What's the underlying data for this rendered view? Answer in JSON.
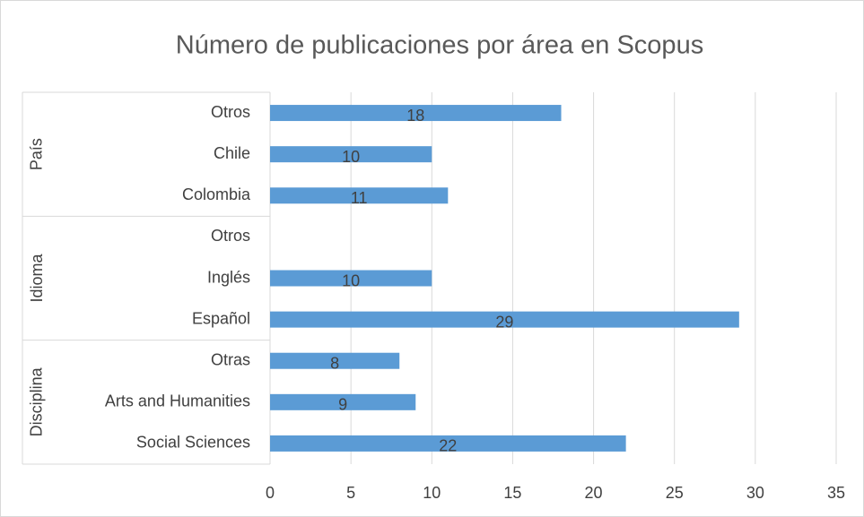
{
  "chart_data": {
    "type": "bar",
    "orientation": "horizontal",
    "title": "Número de publicaciones por área en Scopus",
    "groups": [
      {
        "name": "País",
        "categories": [
          "Otros",
          "Chile",
          "Colombia"
        ],
        "values": [
          18,
          10,
          11
        ]
      },
      {
        "name": "Idioma",
        "categories": [
          "Otros",
          "Inglés",
          "Español"
        ],
        "values": [
          null,
          10,
          29
        ]
      },
      {
        "name": "Disciplina",
        "categories": [
          "Otras",
          "Arts and Humanities",
          "Social Sciences"
        ],
        "values": [
          8,
          9,
          22
        ]
      }
    ],
    "color": "#5b9bd5",
    "xlim": [
      0,
      35
    ],
    "xticks": [
      0,
      5,
      10,
      15,
      20,
      25,
      30,
      35
    ],
    "grid": true
  }
}
